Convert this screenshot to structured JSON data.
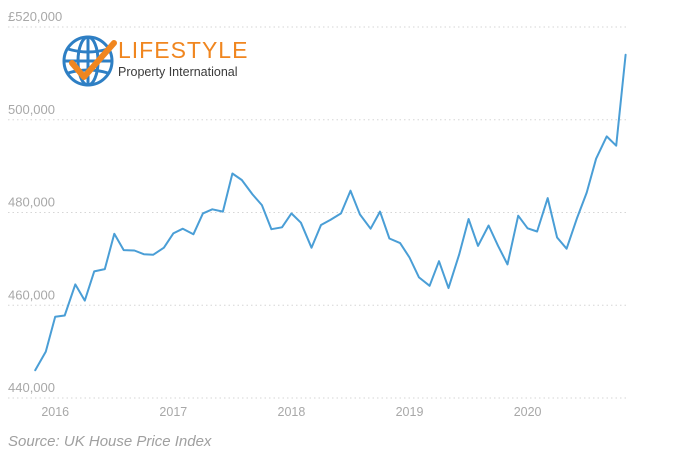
{
  "logo": {
    "title": "LIFESTYLE",
    "subtitle": "Property International",
    "globe_color": "#2e7fc4",
    "check_color": "#f0861f"
  },
  "source_text": "Source: UK House Price Index",
  "colors": {
    "line": "#4a9ed6",
    "grid": "#d6d6d6",
    "tick_text": "#a8a8a8"
  },
  "chart_data": {
    "type": "line",
    "ylim": [
      440000,
      520000
    ],
    "xlim": [
      2015.6,
      2020.85
    ],
    "y_ticks": [
      440000,
      460000,
      480000,
      500000,
      520000
    ],
    "y_tick_labels": [
      "440,000",
      "460,000",
      "480,000",
      "500,000",
      "£520,000"
    ],
    "x_ticks": [
      2016,
      2017,
      2018,
      2019,
      2020
    ],
    "x_tick_labels": [
      "2016",
      "2017",
      "2018",
      "2019",
      "2020"
    ],
    "grid": "horizontal-dotted",
    "legend": "none",
    "series": [
      {
        "x": [
          2015.83,
          2015.92,
          2016.0,
          2016.08,
          2016.17,
          2016.25,
          2016.33,
          2016.42,
          2016.5,
          2016.58,
          2016.67,
          2016.75,
          2016.83,
          2016.92,
          2017.0,
          2017.08,
          2017.17,
          2017.25,
          2017.33,
          2017.42,
          2017.5,
          2017.58,
          2017.67,
          2017.75,
          2017.83,
          2017.92,
          2018.0,
          2018.08,
          2018.17,
          2018.25,
          2018.33,
          2018.42,
          2018.5,
          2018.58,
          2018.67,
          2018.75,
          2018.83,
          2018.92,
          2019.0,
          2019.08,
          2019.17,
          2019.25,
          2019.33,
          2019.42,
          2019.5,
          2019.58,
          2019.67,
          2019.75,
          2019.83,
          2019.92,
          2020.0,
          2020.08,
          2020.17,
          2020.25,
          2020.33,
          2020.42,
          2020.5,
          2020.58,
          2020.67,
          2020.75,
          2020.83
        ],
        "y": [
          446000,
          450000,
          457500,
          457800,
          464500,
          461000,
          467300,
          467800,
          475400,
          471900,
          471800,
          471000,
          470900,
          472400,
          475500,
          476500,
          475300,
          479800,
          480700,
          480200,
          488400,
          487000,
          483900,
          481600,
          476400,
          476800,
          479800,
          477800,
          472400,
          477300,
          478400,
          479800,
          484700,
          479600,
          476500,
          480200,
          474400,
          473400,
          470300,
          466000,
          464200,
          469500,
          463700,
          470900,
          478600,
          472800,
          477200,
          472800,
          468800,
          479300,
          476600,
          475900,
          483100,
          474600,
          472200,
          478900,
          484300,
          491600,
          496400,
          494400,
          514000
        ]
      }
    ]
  }
}
